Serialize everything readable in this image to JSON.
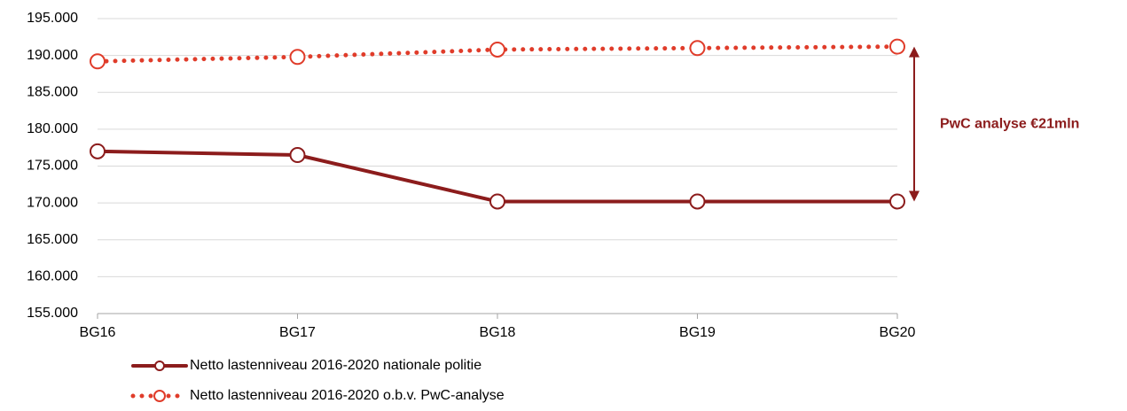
{
  "chart_data": {
    "type": "line",
    "categories": [
      "BG16",
      "BG17",
      "BG18",
      "BG19",
      "BG20"
    ],
    "series": [
      {
        "name": "Netto lastenniveau 2016-2020 nationale politie",
        "color": "#8c1c1c",
        "style": "solid",
        "values": [
          177000,
          176500,
          170200,
          170200,
          170200
        ]
      },
      {
        "name": "Netto lastenniveau 2016-2020 o.b.v. PwC-analyse",
        "color": "#e03c2a",
        "style": "dotted",
        "values": [
          189200,
          189800,
          190800,
          191000,
          191200
        ]
      }
    ],
    "ylim": [
      155000,
      195000
    ],
    "yticks": [
      {
        "value": 155000,
        "label": "155.000"
      },
      {
        "value": 160000,
        "label": "160.000"
      },
      {
        "value": 165000,
        "label": "165.000"
      },
      {
        "value": 170000,
        "label": "170.000"
      },
      {
        "value": 175000,
        "label": "175.000"
      },
      {
        "value": 180000,
        "label": "180.000"
      },
      {
        "value": 185000,
        "label": "185.000"
      },
      {
        "value": 190000,
        "label": "190.000"
      },
      {
        "value": 195000,
        "label": "195.000"
      }
    ],
    "grid": true,
    "annotation": {
      "text": "PwC analyse €21mln",
      "color": "#8c1c1c"
    },
    "legend": "bottom"
  }
}
